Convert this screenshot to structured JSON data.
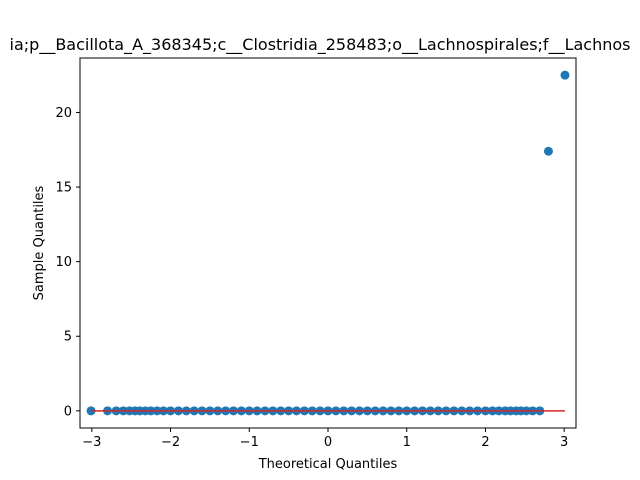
{
  "chart_data": {
    "type": "scatter",
    "title": "ia;p__Bacillota_A_368345;c__Clostridia_258483;o__Lachnospirales;f__Lachnos",
    "xlabel": "Theoretical Quantiles",
    "ylabel": "Sample Quantiles",
    "xlim": [
      -3.15,
      3.15
    ],
    "ylim": [
      -1.15,
      23.65
    ],
    "x_ticks": [
      -3,
      -2,
      -1,
      0,
      1,
      2,
      3
    ],
    "y_ticks": [
      0,
      5,
      10,
      15,
      20
    ],
    "grid": false,
    "colors": {
      "points": "#1f77b4",
      "reference_line": "#d62728"
    },
    "series": [
      {
        "values": [
          {
            "x": -3.01,
            "y": 0
          },
          {
            "x": -2.8,
            "y": 0
          },
          {
            "x": -2.69,
            "y": 0
          },
          {
            "x": -2.6,
            "y": 0
          },
          {
            "x": -2.52,
            "y": 0
          },
          {
            "x": -2.45,
            "y": 0
          },
          {
            "x": -2.39,
            "y": 0
          },
          {
            "x": -2.32,
            "y": 0
          },
          {
            "x": -2.25,
            "y": 0
          },
          {
            "x": -2.17,
            "y": 0
          },
          {
            "x": -2.09,
            "y": 0
          },
          {
            "x": -2.0,
            "y": 0
          },
          {
            "x": -1.9,
            "y": 0
          },
          {
            "x": -1.8,
            "y": 0
          },
          {
            "x": -1.7,
            "y": 0
          },
          {
            "x": -1.6,
            "y": 0
          },
          {
            "x": -1.5,
            "y": 0
          },
          {
            "x": -1.4,
            "y": 0
          },
          {
            "x": -1.3,
            "y": 0
          },
          {
            "x": -1.2,
            "y": 0
          },
          {
            "x": -1.1,
            "y": 0
          },
          {
            "x": -1.0,
            "y": 0
          },
          {
            "x": -0.9,
            "y": 0
          },
          {
            "x": -0.8,
            "y": 0
          },
          {
            "x": -0.7,
            "y": 0
          },
          {
            "x": -0.6,
            "y": 0
          },
          {
            "x": -0.5,
            "y": 0
          },
          {
            "x": -0.4,
            "y": 0
          },
          {
            "x": -0.3,
            "y": 0
          },
          {
            "x": -0.2,
            "y": 0
          },
          {
            "x": -0.1,
            "y": 0
          },
          {
            "x": 0.0,
            "y": 0
          },
          {
            "x": 0.1,
            "y": 0
          },
          {
            "x": 0.2,
            "y": 0
          },
          {
            "x": 0.3,
            "y": 0
          },
          {
            "x": 0.4,
            "y": 0
          },
          {
            "x": 0.5,
            "y": 0
          },
          {
            "x": 0.6,
            "y": 0
          },
          {
            "x": 0.7,
            "y": 0
          },
          {
            "x": 0.8,
            "y": 0
          },
          {
            "x": 0.9,
            "y": 0
          },
          {
            "x": 1.0,
            "y": 0
          },
          {
            "x": 1.1,
            "y": 0
          },
          {
            "x": 1.2,
            "y": 0
          },
          {
            "x": 1.3,
            "y": 0
          },
          {
            "x": 1.4,
            "y": 0
          },
          {
            "x": 1.5,
            "y": 0
          },
          {
            "x": 1.6,
            "y": 0
          },
          {
            "x": 1.7,
            "y": 0
          },
          {
            "x": 1.8,
            "y": 0
          },
          {
            "x": 1.9,
            "y": 0
          },
          {
            "x": 2.0,
            "y": 0
          },
          {
            "x": 2.09,
            "y": 0
          },
          {
            "x": 2.17,
            "y": 0
          },
          {
            "x": 2.25,
            "y": 0
          },
          {
            "x": 2.32,
            "y": 0
          },
          {
            "x": 2.39,
            "y": 0
          },
          {
            "x": 2.45,
            "y": 0
          },
          {
            "x": 2.52,
            "y": 0
          },
          {
            "x": 2.6,
            "y": 0
          },
          {
            "x": 2.69,
            "y": 0
          },
          {
            "x": 2.8,
            "y": 17.4
          },
          {
            "x": 3.01,
            "y": 22.5
          }
        ]
      }
    ],
    "reference_line": {
      "x": [
        -3.01,
        3.01
      ],
      "y": [
        0,
        0
      ]
    }
  }
}
